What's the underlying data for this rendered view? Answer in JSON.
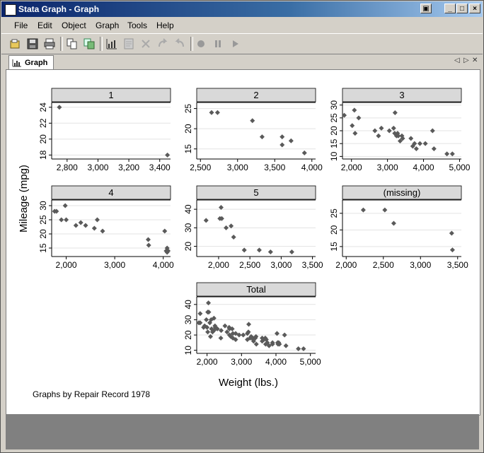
{
  "window": {
    "title": "Stata Graph - Graph",
    "controls": [
      "_",
      "□",
      "×"
    ]
  },
  "menu": {
    "items": [
      "File",
      "Edit",
      "Object",
      "Graph",
      "Tools",
      "Help"
    ]
  },
  "toolbar": {
    "buttons": [
      "open-icon",
      "save-icon",
      "print-icon",
      "copy-icon",
      "copy-all-icon",
      "graph-editor-icon",
      "properties-icon",
      "pointer-icon",
      "rotate-icon",
      "redo-icon",
      "record-icon",
      "pause-icon",
      "play-icon"
    ]
  },
  "tabs": {
    "active": "Graph"
  },
  "graph": {
    "ylabel": "Mileage (mpg)",
    "xlabel": "Weight (lbs.)",
    "note": "Graphs by Repair Record 1978",
    "colors": {
      "marker": "#5a5a5a",
      "header_bg": "#d9d9d9",
      "grid": "#e3e3e3"
    }
  },
  "chart_data": [
    {
      "type": "scatter",
      "title": "1",
      "xlim": [
        2700,
        3470
      ],
      "ylim": [
        17.5,
        24.6
      ],
      "xticks": [
        2800,
        3000,
        3200,
        3400
      ],
      "yticks": [
        18,
        20,
        22,
        24
      ],
      "x": [
        2750,
        3450
      ],
      "y": [
        24,
        18
      ]
    },
    {
      "type": "scatter",
      "title": "2",
      "xlim": [
        2450,
        4050
      ],
      "ylim": [
        12.5,
        26.5
      ],
      "xticks": [
        2500,
        3000,
        3500,
        4000
      ],
      "yticks": [
        15,
        20,
        25
      ],
      "x": [
        2650,
        2730,
        3200,
        3330,
        3600,
        3600,
        3720,
        3900
      ],
      "y": [
        24,
        24,
        22,
        18,
        18,
        16,
        17,
        14
      ]
    },
    {
      "type": "scatter",
      "title": "3",
      "xlim": [
        1750,
        5050
      ],
      "ylim": [
        9,
        31
      ],
      "xticks": [
        2000,
        3000,
        4000,
        5000
      ],
      "yticks": [
        10,
        15,
        20,
        25,
        30
      ],
      "x": [
        1800,
        2020,
        2080,
        2100,
        2200,
        2650,
        2750,
        2830,
        3050,
        3170,
        3200,
        3210,
        3250,
        3280,
        3300,
        3350,
        3400,
        3420,
        3650,
        3700,
        3750,
        3800,
        3900,
        4050,
        4250,
        4290,
        4650,
        4800
      ],
      "y": [
        26,
        22,
        28,
        19,
        25,
        20,
        18,
        21,
        20,
        21,
        19,
        27,
        18,
        19,
        18,
        16,
        18,
        17,
        17,
        14,
        15,
        13,
        15,
        15,
        20,
        13,
        11,
        11
      ]
    },
    {
      "type": "scatter",
      "title": "4",
      "xlim": [
        1700,
        4150
      ],
      "ylim": [
        12,
        32
      ],
      "xticks": [
        2000,
        3000,
        4000
      ],
      "yticks": [
        15,
        20,
        25,
        30
      ],
      "x": [
        1760,
        1800,
        1900,
        1980,
        2000,
        2200,
        2300,
        2400,
        2580,
        2640,
        2750,
        3690,
        3700,
        4030,
        4060,
        4080,
        4100,
        4080
      ],
      "y": [
        28,
        28,
        25,
        30,
        25,
        23,
        24,
        23,
        22,
        25,
        21,
        18,
        16,
        21,
        14,
        15,
        14,
        13.5
      ]
    },
    {
      "type": "scatter",
      "title": "5",
      "xlim": [
        1650,
        3550
      ],
      "ylim": [
        14.5,
        45
      ],
      "xticks": [
        2000,
        2500,
        3000,
        3500
      ],
      "yticks": [
        20,
        30,
        40
      ],
      "x": [
        1800,
        2020,
        2040,
        2050,
        2120,
        2200,
        2240,
        2410,
        2650,
        2830,
        3170
      ],
      "y": [
        34,
        35,
        41,
        35,
        30,
        31,
        25,
        18,
        18,
        17,
        17
      ]
    },
    {
      "type": "scatter",
      "title": "(missing)",
      "xlim": [
        1950,
        3550
      ],
      "ylim": [
        12,
        29
      ],
      "xticks": [
        2000,
        2500,
        3000,
        3500
      ],
      "yticks": [
        15,
        20,
        25
      ],
      "x": [
        2230,
        2520,
        2640,
        3420,
        3430
      ],
      "y": [
        26,
        26,
        22,
        19,
        14
      ]
    },
    {
      "type": "scatter",
      "title": "Total",
      "xlim": [
        1700,
        5150
      ],
      "ylim": [
        8,
        45
      ],
      "xticks": [
        2000,
        3000,
        4000,
        5000
      ],
      "yticks": [
        10,
        20,
        30,
        40
      ],
      "x": [
        1760,
        1800,
        1800,
        1900,
        1930,
        1980,
        2000,
        2020,
        2020,
        2040,
        2050,
        2080,
        2100,
        2120,
        2130,
        2160,
        2200,
        2200,
        2230,
        2240,
        2300,
        2400,
        2410,
        2520,
        2580,
        2640,
        2650,
        2650,
        2690,
        2730,
        2750,
        2750,
        2830,
        2830,
        2930,
        3050,
        3170,
        3170,
        3200,
        3210,
        3250,
        3280,
        3300,
        3330,
        3350,
        3400,
        3420,
        3430,
        3600,
        3600,
        3650,
        3690,
        3700,
        3720,
        3750,
        3800,
        3900,
        3900,
        4030,
        4050,
        4060,
        4080,
        4100,
        4250,
        4290,
        4650,
        4800
      ],
      "y": [
        28,
        28,
        34,
        25,
        26,
        30,
        25,
        22,
        35,
        41,
        35,
        28,
        19,
        30,
        24,
        22,
        23,
        31,
        26,
        25,
        24,
        18,
        23,
        26,
        22,
        25,
        20,
        24,
        19,
        24,
        21,
        18,
        17,
        21,
        20,
        20,
        21,
        17,
        22,
        27,
        18,
        19,
        18,
        18,
        16,
        18,
        19,
        14,
        18,
        16,
        17,
        18,
        14,
        17,
        15,
        13,
        15,
        14,
        21,
        15,
        14,
        15,
        14,
        20,
        13,
        11,
        11
      ]
    }
  ]
}
